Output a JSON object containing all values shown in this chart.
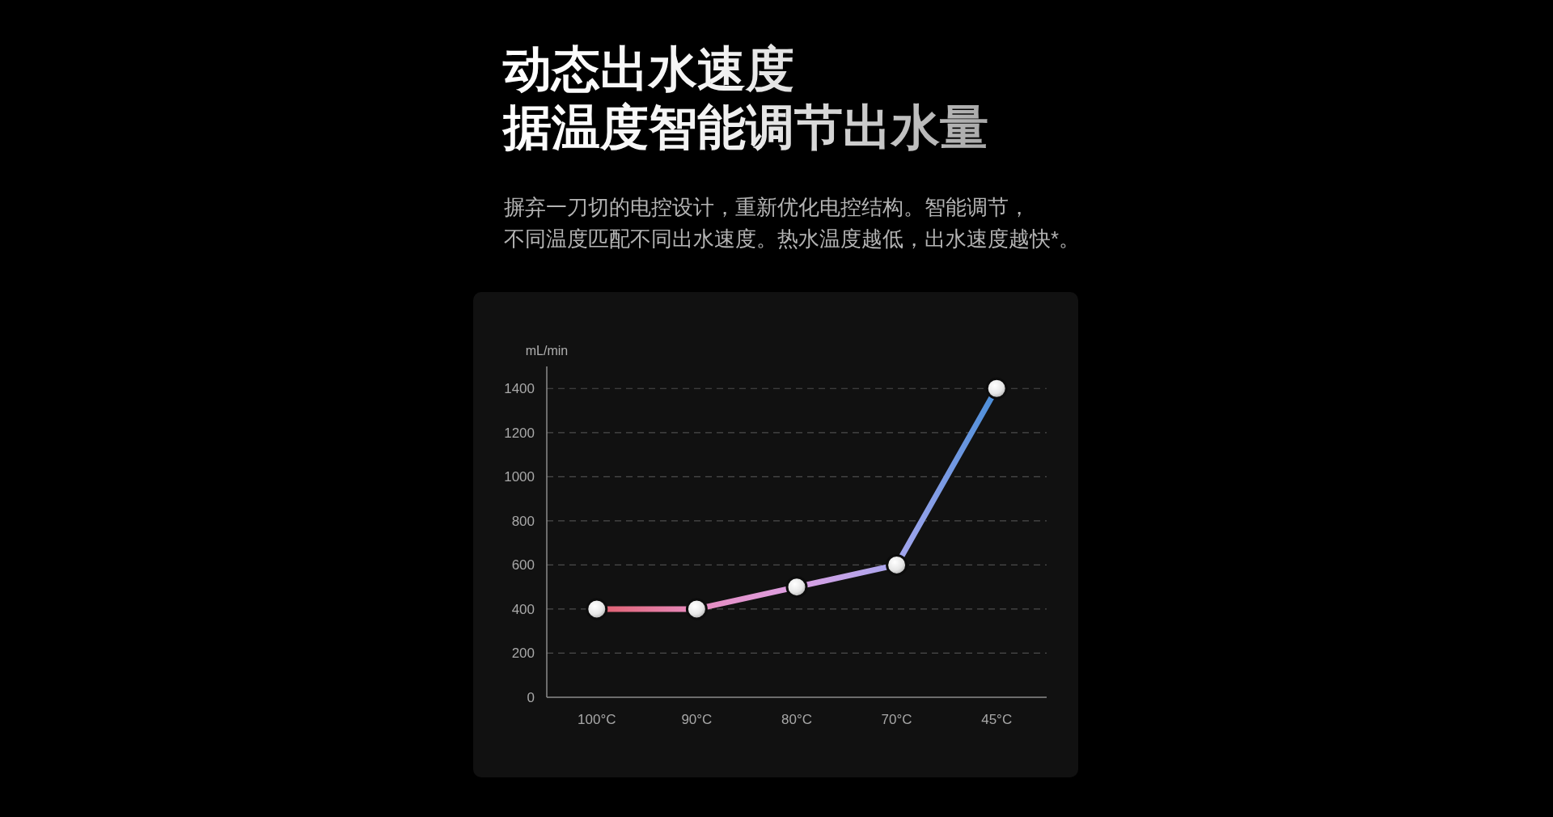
{
  "chart_data": {
    "type": "line",
    "title": "动态出水速度",
    "subtitle": "据温度智能调节出水量",
    "annotations": [
      "摒弃一刀切的电控设计，重新优化电控结构。智能调节，不同温度匹配不同出水速度。热水温度越低，出水速度越快*。"
    ],
    "ylabel": "mL/min",
    "categories": [
      "100°C",
      "90°C",
      "80°C",
      "70°C",
      "45°C"
    ],
    "series": [
      {
        "colors": [
          "#e0606e",
          "#e78cc0",
          "#dca0e2",
          "#a6a6ee",
          "#4a8ed8"
        ],
        "values": [
          400,
          400,
          500,
          600,
          1400
        ]
      }
    ],
    "ylim": [
      0,
      1500
    ],
    "yticks": [
      0,
      200,
      400,
      600,
      800,
      1000,
      1200,
      1400
    ],
    "grid": "y",
    "marker": "circle",
    "line_style": "solid"
  }
}
